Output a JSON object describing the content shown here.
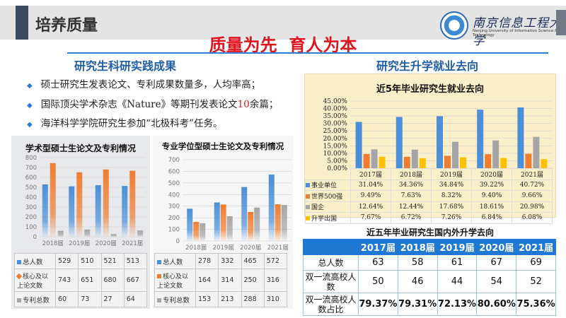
{
  "header": {
    "title": "培养质量",
    "logo_cn": "南京信息工程大学",
    "logo_en": "Nanjing University of Information Science & Technology"
  },
  "main_title": "质量为先  育人为本",
  "left_heading": "研究生科研实践成果",
  "right_heading": "研究生升学就业去向",
  "bullets": [
    {
      "pre": "硕士研究生发表论文、专利成果数量多，人均率高；",
      "hl": "",
      "post": ""
    },
    {
      "pre": "国际顶尖学术杂志《Nature》等期刊发表论文",
      "hl": "10",
      "post": "余篇；"
    },
    {
      "pre": "海洋科学学院研究生参加“北极科考”任务。",
      "hl": "",
      "post": ""
    }
  ],
  "colors": {
    "blue": "#4a8fd8",
    "orange": "#ef7d31",
    "gray": "#a5a5a5",
    "yellow": "#ffc000"
  },
  "chart_data": [
    {
      "type": "bar",
      "title": "学术型硕士生论文及专利情况",
      "categories": [
        "2018届",
        "2019届",
        "2020届",
        "2021届"
      ],
      "ylim": [
        0,
        800
      ],
      "yticks": [
        0,
        100,
        200,
        300,
        400,
        500,
        600,
        700,
        800
      ],
      "series": [
        {
          "name": "总人数",
          "values": [
            529,
            510,
            521,
            513
          ]
        },
        {
          "name": "核心及以上论文数",
          "values": [
            743,
            651,
            680,
            667
          ]
        },
        {
          "name": "专利总数",
          "values": [
            60,
            73,
            27,
            64
          ]
        }
      ]
    },
    {
      "type": "bar",
      "title": "专业学位型硕士生论文及专利情况",
      "categories": [
        "2018届",
        "2019届",
        "2020届",
        "2021届"
      ],
      "ylim": [
        0,
        700
      ],
      "yticks": [
        0,
        100,
        200,
        300,
        400,
        500,
        600,
        700
      ],
      "series": [
        {
          "name": "总人数",
          "values": [
            278,
            332,
            465,
            572
          ]
        },
        {
          "name": "核心及以上论文数",
          "values": [
            164,
            314,
            250,
            316
          ]
        },
        {
          "name": "专利总数",
          "values": [
            153,
            213,
            288,
            310
          ]
        }
      ]
    },
    {
      "type": "bar",
      "title": "近5年毕业研究生就业去向",
      "categories": [
        "2017届",
        "2018届",
        "2019届",
        "2020届",
        "2021届"
      ],
      "ylim": [
        0,
        45
      ],
      "yticks": [
        "0.00%",
        "5.00%",
        "10.00%",
        "15.00%",
        "20.00%",
        "25.00%",
        "30.00%",
        "35.00%",
        "40.00%",
        "45.00%"
      ],
      "series": [
        {
          "name": "事业单位",
          "values": [
            31.04,
            34.36,
            34.84,
            39.22,
            40.72
          ],
          "labels": [
            "31.04%",
            "34.36%",
            "34.84%",
            "39.22%",
            "40.72%"
          ]
        },
        {
          "name": "世界500强",
          "values": [
            9.49,
            7.63,
            8.32,
            9.4,
            9.66
          ],
          "labels": [
            "9.49%",
            "7.63%",
            "8.32%",
            "9.40%",
            "9.66%"
          ]
        },
        {
          "name": "国企",
          "values": [
            12.64,
            12.44,
            17.68,
            18.61,
            20.98
          ],
          "labels": [
            "12.64%",
            "12.44%",
            "17.68%",
            "18.61%",
            "20.98%"
          ]
        },
        {
          "name": "升学出国",
          "values": [
            7.67,
            6.72,
            7.26,
            6.84,
            6.08
          ],
          "labels": [
            "7.67%",
            "6.72%",
            "7.26%",
            "6.84%",
            "6.08%"
          ]
        }
      ]
    },
    {
      "type": "table",
      "title": "近五年毕业研究生国内外升学去向",
      "columns": [
        "2017届",
        "2018届",
        "2019届",
        "2020届",
        "2021届"
      ],
      "rows": [
        {
          "label": "总人数",
          "values": [
            "63",
            "58",
            "61",
            "67",
            "69"
          ]
        },
        {
          "label": "双一流高校人数",
          "values": [
            "50",
            "46",
            "44",
            "54",
            "52"
          ]
        },
        {
          "label": "双一流高校人数占比",
          "values": [
            "79.37%",
            "79.31%",
            "72.13%",
            "80.60%",
            "75.36%"
          ]
        }
      ]
    }
  ]
}
